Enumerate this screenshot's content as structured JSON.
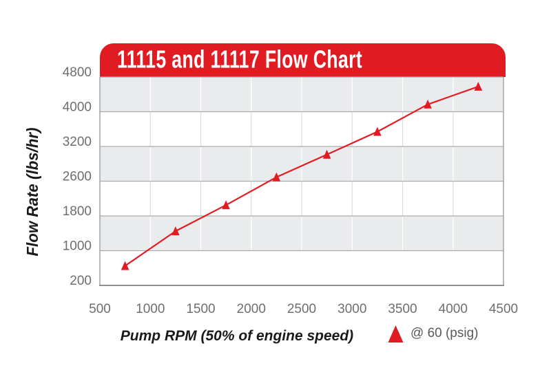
{
  "chart_data": {
    "type": "line",
    "title": "11115 and 11117 Flow Chart",
    "xlabel": "Pump RPM (50% of engine speed)",
    "ylabel": "Flow Rate (lbs/hr)",
    "xlim": [
      500,
      4500
    ],
    "x_ticks": [
      500,
      1000,
      1500,
      2000,
      2500,
      3000,
      3500,
      4000,
      4500
    ],
    "y_ticks": [
      200,
      1000,
      1800,
      2600,
      3200,
      4000,
      4800
    ],
    "grid": true,
    "legend_position": "bottom-right",
    "series": [
      {
        "name": "@ 60 (psig)",
        "marker": "triangle-up",
        "color": "#e11b22",
        "points": [
          [
            750,
            650
          ],
          [
            1250,
            1450
          ],
          [
            1750,
            2050
          ],
          [
            2250,
            2670
          ],
          [
            2750,
            3060
          ],
          [
            3250,
            3540
          ],
          [
            3750,
            4170
          ],
          [
            4250,
            4580
          ]
        ]
      }
    ],
    "colors": {
      "header_bg": "#e11b22",
      "header_text": "#ffffff",
      "band_base": "#ffffff",
      "band_alt": "#eaebed",
      "h_grid": "#a9abac",
      "v_grid_on_white": "#dcdde1",
      "v_grid_on_gray": "#ffffff",
      "frame": "#a2a4a7",
      "bottom_axis": "#8f9194",
      "tick_text": "#6d6e71",
      "axis_title_text": "#1a1a1a",
      "legend_text": "#58595b"
    }
  }
}
